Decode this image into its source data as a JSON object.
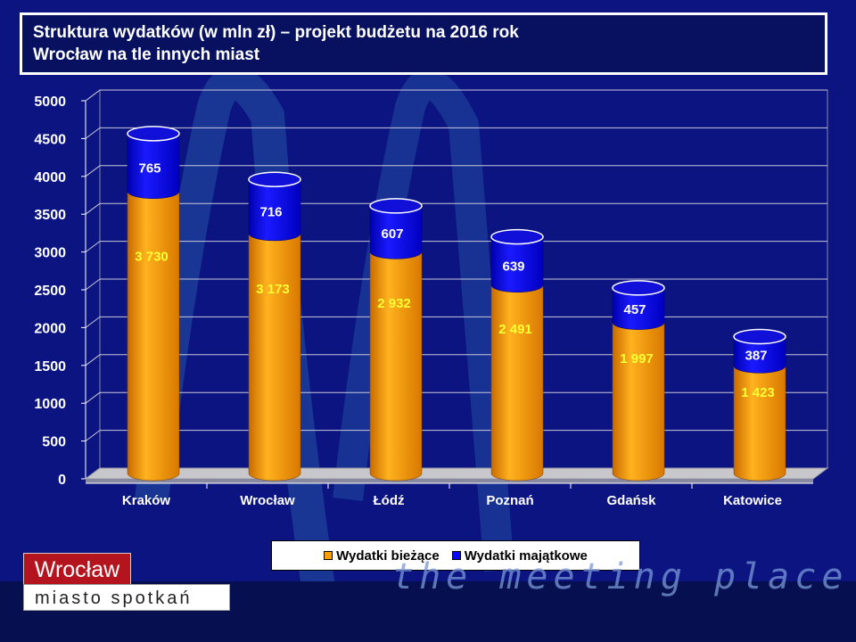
{
  "title": {
    "line1": "Struktura wydatków (w mln zł) – projekt budżetu na 2016 rok",
    "line2": "Wrocław na tle innych miast"
  },
  "colors": {
    "background": "#0b1480",
    "current": "#ff9e00",
    "capital": "#0a0af0",
    "current_label": "#ffff33",
    "capital_label": "#ffffff"
  },
  "chart_data": {
    "type": "bar",
    "stacked": true,
    "categories": [
      "Kraków",
      "Wrocław",
      "Łódź",
      "Poznań",
      "Gdańsk",
      "Katowice"
    ],
    "series": [
      {
        "name": "Wydatki bieżące",
        "values": [
          3730,
          3173,
          2932,
          2491,
          1997,
          1423
        ],
        "labels": [
          "3 730",
          "3 173",
          "2 932",
          "2 491",
          "1 997",
          "1 423"
        ]
      },
      {
        "name": "Wydatki majątkowe",
        "values": [
          765,
          716,
          607,
          639,
          457,
          387
        ],
        "labels": [
          "765",
          "716",
          "607",
          "639",
          "457",
          "387"
        ]
      }
    ],
    "ylim": [
      0,
      5000
    ],
    "yticks": [
      "0",
      "500",
      "1000",
      "1500",
      "2000",
      "2500",
      "3000",
      "3500",
      "4000",
      "4500",
      "5000"
    ],
    "grid": true,
    "legend_position": "bottom"
  },
  "branding": {
    "logo_text": "Wrocław",
    "logo_subtext": "miasto spotkań",
    "slogan": "the meeting place"
  }
}
